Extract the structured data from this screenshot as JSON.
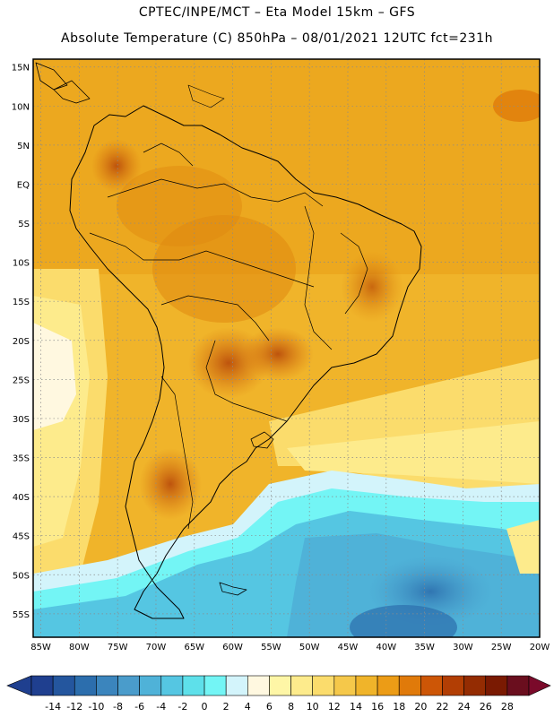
{
  "header": {
    "line1": "CPTEC/INPE/MCT –  Eta Model 15km – GFS",
    "line2": "Absolute Temperature (C) 850hPa – 08/01/2021 12UTC fct=231h"
  },
  "map": {
    "lat_labels": [
      "15N",
      "10N",
      "5N",
      "EQ",
      "5S",
      "10S",
      "15S",
      "20S",
      "25S",
      "30S",
      "35S",
      "40S",
      "45S",
      "50S",
      "55S"
    ],
    "lon_labels": [
      "85W",
      "80W",
      "75W",
      "70W",
      "65W",
      "60W",
      "55W",
      "50W",
      "45W",
      "40W",
      "35W",
      "30W",
      "25W",
      "20W"
    ],
    "extent": {
      "lon": [
        -86,
        -20
      ],
      "lat": [
        -58,
        16
      ]
    }
  },
  "legend": {
    "labels": [
      "-14",
      "-12",
      "-10",
      "-8",
      "-6",
      "-4",
      "-2",
      "0",
      "2",
      "4",
      "6",
      "8",
      "10",
      "12",
      "14",
      "16",
      "18",
      "20",
      "22",
      "24",
      "26",
      "28"
    ],
    "colors": [
      "#1f3f8f",
      "#24569e",
      "#2c6ead",
      "#3b85bd",
      "#4a9ccb",
      "#4fb2d8",
      "#55c6e2",
      "#5ee0ea",
      "#73f5f5",
      "#d3f4fb",
      "#fff8e0",
      "#fef6a6",
      "#fdeb8c",
      "#fbdc6c",
      "#f5c84a",
      "#f0b42a",
      "#ec9c16",
      "#e07a0a",
      "#cd5606",
      "#b23e04",
      "#942c02",
      "#7a1a02",
      "#6a0e1e"
    ]
  }
}
